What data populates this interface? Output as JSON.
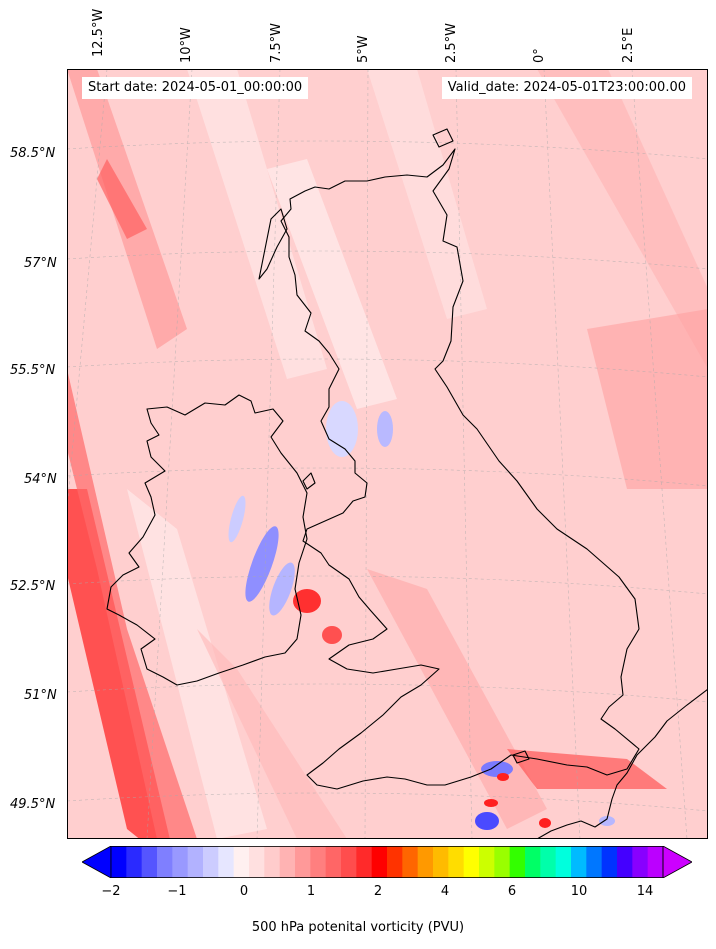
{
  "map": {
    "start_date": "Start date: 2024-05-01_00:00:00",
    "valid_date": "Valid_date: 2024-05-01T23:00:00.00",
    "longitude_labels": [
      "12.5°W",
      "10°W",
      "7.5°W",
      "5°W",
      "2.5°W",
      "0°",
      "2.5°E"
    ],
    "latitude_labels": [
      "58.5°N",
      "57°N",
      "55.5°N",
      "54°N",
      "52.5°N",
      "51°N",
      "49.5°N"
    ]
  },
  "colorbar": {
    "label": "500 hPa potenital vorticity (PVU)",
    "tick_labels": [
      "−2",
      "−1",
      "0",
      "1",
      "2",
      "4",
      "6",
      "10",
      "14"
    ],
    "colors": [
      "#0000ff",
      "#2a2aff",
      "#5555ff",
      "#7f7fff",
      "#9999ff",
      "#b2b2ff",
      "#ccccff",
      "#e6e6ff",
      "#fff0f0",
      "#ffe0e0",
      "#ffcccc",
      "#ffb3b3",
      "#ff9999",
      "#ff7f7f",
      "#ff6666",
      "#ff4d4d",
      "#ff2a2a",
      "#ff0000",
      "#ff3300",
      "#ff6600",
      "#ff9900",
      "#ffbb00",
      "#ffdd00",
      "#ffff00",
      "#ccff00",
      "#99ff00",
      "#33ff00",
      "#00ff66",
      "#00ffaa",
      "#00ffdd",
      "#00bbff",
      "#0077ff",
      "#0033ff",
      "#4400ff",
      "#8800ff",
      "#bb00ff"
    ],
    "extend_low_color": "#0000ff",
    "extend_high_color": "#cc00ff"
  }
}
